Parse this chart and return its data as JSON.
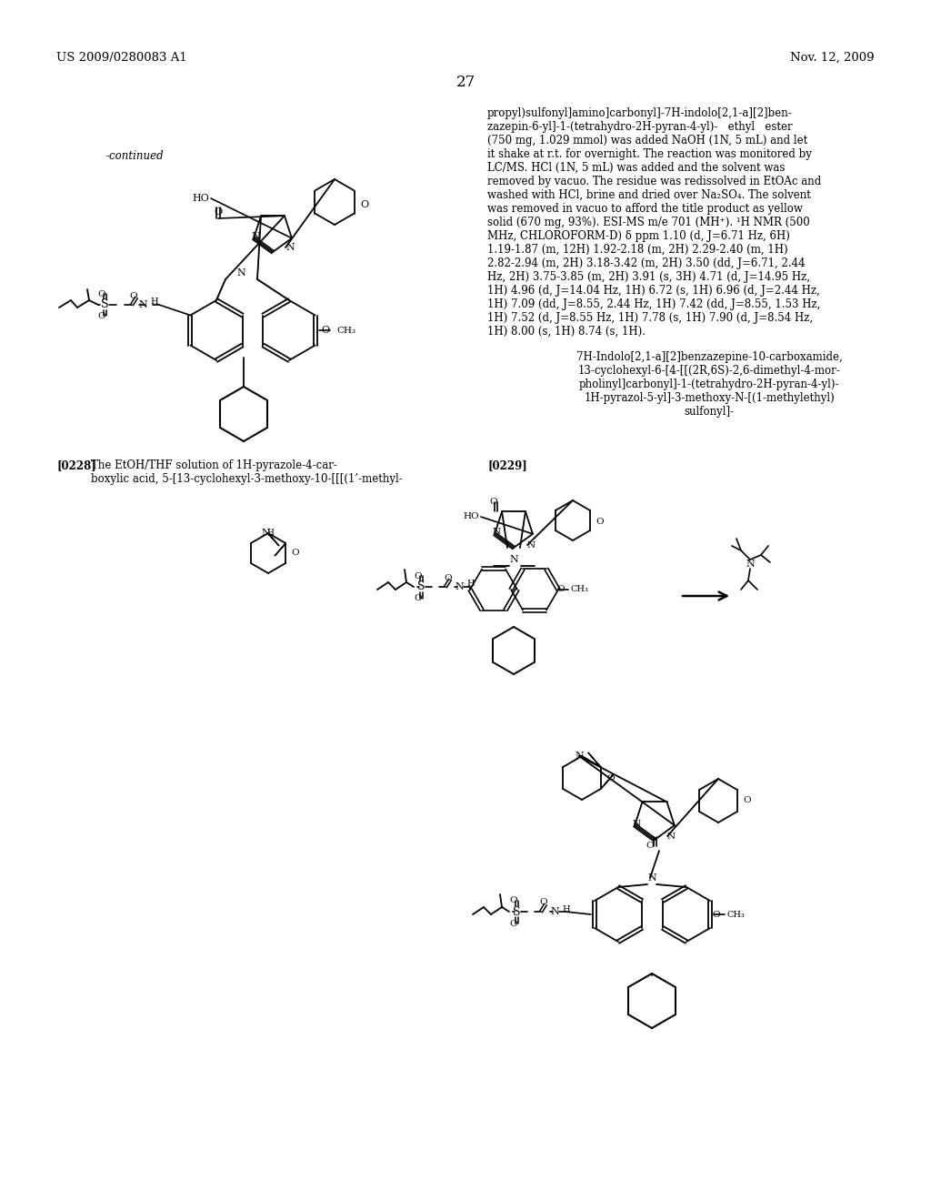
{
  "page_header_left": "US 2009/0280083 A1",
  "page_header_right": "Nov. 12, 2009",
  "page_number": "27",
  "continued_label": "-continued",
  "background_color": "#ffffff",
  "text_color": "#000000",
  "right_col_text": "propyl)sulfonyl]amino]carbonyl]-7H-indolo[2,1-a][2]ben-\nzazepin-6-yl]-1-(tetrahydro-2H-pyran-4-yl)-   ethyl   ester\n(750 mg, 1.029 mmol) was added NaOH (1N, 5 mL) and let\nit shake at r.t. for overnight. The reaction was monitored by\nLC/MS. HCl (1N, 5 mL) was added and the solvent was\nremoved by vacuo. The residue was redissolved in EtOAc and\nwashed with HCl, brine and dried over Na₂SO₄. The solvent\nwas removed in vacuo to afford the title product as yellow\nsolid (670 mg, 93%). ESI-MS m/e 701 (MH⁺). ¹H NMR (500\nMHz, CHLOROFORM-D) δ ppm 1.10 (d, J=6.71 Hz, 6H)\n1.19-1.87 (m, 12H) 1.92-2.18 (m, 2H) 2.29-2.40 (m, 1H)\n2.82-2.94 (m, 2H) 3.18-3.42 (m, 2H) 3.50 (dd, J=6.71, 2.44\nHz, 2H) 3.75-3.85 (m, 2H) 3.91 (s, 3H) 4.71 (d, J=14.95 Hz,\n1H) 4.96 (d, J=14.04 Hz, 1H) 6.72 (s, 1H) 6.96 (d, J=2.44 Hz,\n1H) 7.09 (dd, J=8.55, 2.44 Hz, 1H) 7.42 (dd, J=8.55, 1.53 Hz,\n1H) 7.52 (d, J=8.55 Hz, 1H) 7.78 (s, 1H) 7.90 (d, J=8.54 Hz,\n1H) 8.00 (s, 1H) 8.74 (s, 1H).",
  "compound_name": "7H-Indolo[2,1-a][2]benzazepine-10-carboxamide,\n13-cyclohexyl-6-[4-[[(2R,6S)-2,6-dimethyl-4-mor-\npholinyl]carbonyl]-1-(tetrahydro-2H-pyran-4-yl)-\n1H-pyrazol-5-yl]-3-methoxy-N-[(1-methylethyl)\nsulfonyl]-",
  "para_0228_label": "[0228]",
  "para_0228_text": "The EtOH/THF solution of 1H-pyrazole-4-car-\nboxylic acid, 5-[13-cyclohexyl-3-methoxy-10-[[[(1’-methyl-",
  "para_0229_label": "[0229]",
  "fs_header": 9.5,
  "fs_body": 8.5,
  "fs_pagenum": 12
}
